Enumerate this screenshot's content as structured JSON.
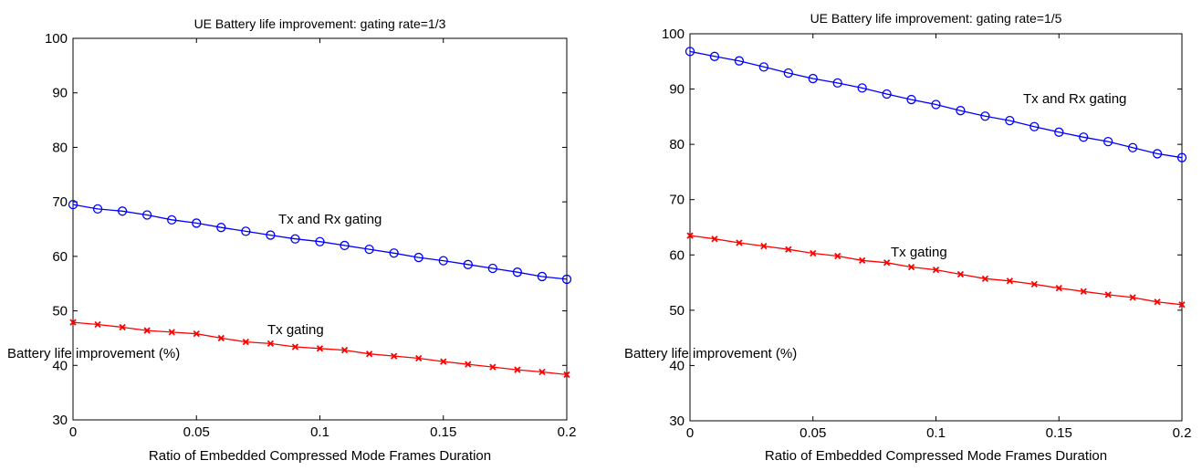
{
  "chart_data": [
    {
      "type": "line",
      "title": "UE Battery life improvement: gating rate=1/3",
      "xlabel": "Ratio of Embedded Compressed Mode Frames Duration",
      "ylabel": "Battery life improvement (%)",
      "xlim": [
        0,
        0.2
      ],
      "ylim": [
        30,
        100
      ],
      "xticks": [
        0,
        0.05,
        0.1,
        0.15,
        0.2
      ],
      "xtick_labels": [
        "0",
        "0.05",
        "0.1",
        "0.15",
        "0.2"
      ],
      "yticks": [
        30,
        40,
        50,
        60,
        70,
        80,
        90,
        100
      ],
      "ytick_labels": [
        "30",
        "40",
        "50",
        "60",
        "70",
        "80",
        "90",
        "100"
      ],
      "grid": false,
      "x": [
        0,
        0.01,
        0.02,
        0.03,
        0.04,
        0.05,
        0.06,
        0.07,
        0.08,
        0.09,
        0.1,
        0.11,
        0.12,
        0.13,
        0.14,
        0.15,
        0.16,
        0.17,
        0.18,
        0.19,
        0.2
      ],
      "series": [
        {
          "label": "Tx and Rx gating",
          "color": "#0000ff",
          "marker": "circle",
          "values": [
            69.5,
            68.7,
            68.3,
            67.6,
            66.7,
            66.1,
            65.3,
            64.6,
            63.9,
            63.2,
            62.7,
            62.0,
            61.3,
            60.6,
            59.8,
            59.2,
            58.5,
            57.8,
            57.1,
            56.3,
            55.8
          ]
        },
        {
          "label": "Tx gating",
          "color": "#ff0000",
          "marker": "x",
          "values": [
            47.9,
            47.5,
            47.0,
            46.4,
            46.1,
            45.8,
            45.0,
            44.3,
            44.0,
            43.4,
            43.1,
            42.8,
            42.1,
            41.7,
            41.3,
            40.7,
            40.2,
            39.7,
            39.2,
            38.8,
            38.3
          ]
        }
      ],
      "annotations": [
        "Tx and Rx gating",
        "Tx gating"
      ]
    },
    {
      "type": "line",
      "title": "UE Battery life improvement: gating rate=1/5",
      "xlabel": "Ratio of Embedded Compressed Mode Frames Duration",
      "ylabel": "Battery life improvement (%)",
      "xlim": [
        0,
        0.2
      ],
      "ylim": [
        30,
        100
      ],
      "xticks": [
        0,
        0.05,
        0.1,
        0.15,
        0.2
      ],
      "xtick_labels": [
        "0",
        "0.05",
        "0.1",
        "0.15",
        "0.2"
      ],
      "yticks": [
        30,
        40,
        50,
        60,
        70,
        80,
        90,
        100
      ],
      "ytick_labels": [
        "30",
        "40",
        "50",
        "60",
        "70",
        "80",
        "90",
        "100"
      ],
      "grid": false,
      "x": [
        0,
        0.01,
        0.02,
        0.03,
        0.04,
        0.05,
        0.06,
        0.07,
        0.08,
        0.09,
        0.1,
        0.11,
        0.12,
        0.13,
        0.14,
        0.15,
        0.16,
        0.17,
        0.18,
        0.19,
        0.2
      ],
      "series": [
        {
          "label": "Tx and Rx gating",
          "color": "#0000ff",
          "marker": "circle",
          "values": [
            96.8,
            95.9,
            95.1,
            94.0,
            92.9,
            91.9,
            91.1,
            90.2,
            89.1,
            88.1,
            87.2,
            86.1,
            85.1,
            84.3,
            83.2,
            82.2,
            81.3,
            80.5,
            79.4,
            78.3,
            77.6
          ]
        },
        {
          "label": "Tx gating",
          "color": "#ff0000",
          "marker": "x",
          "values": [
            63.5,
            62.9,
            62.2,
            61.6,
            61.0,
            60.3,
            59.8,
            59.0,
            58.6,
            57.8,
            57.3,
            56.5,
            55.7,
            55.3,
            54.7,
            54.0,
            53.4,
            52.8,
            52.3,
            51.5,
            51.0
          ]
        }
      ],
      "annotations": [
        "Tx and Rx gating",
        "Tx gating"
      ]
    }
  ]
}
